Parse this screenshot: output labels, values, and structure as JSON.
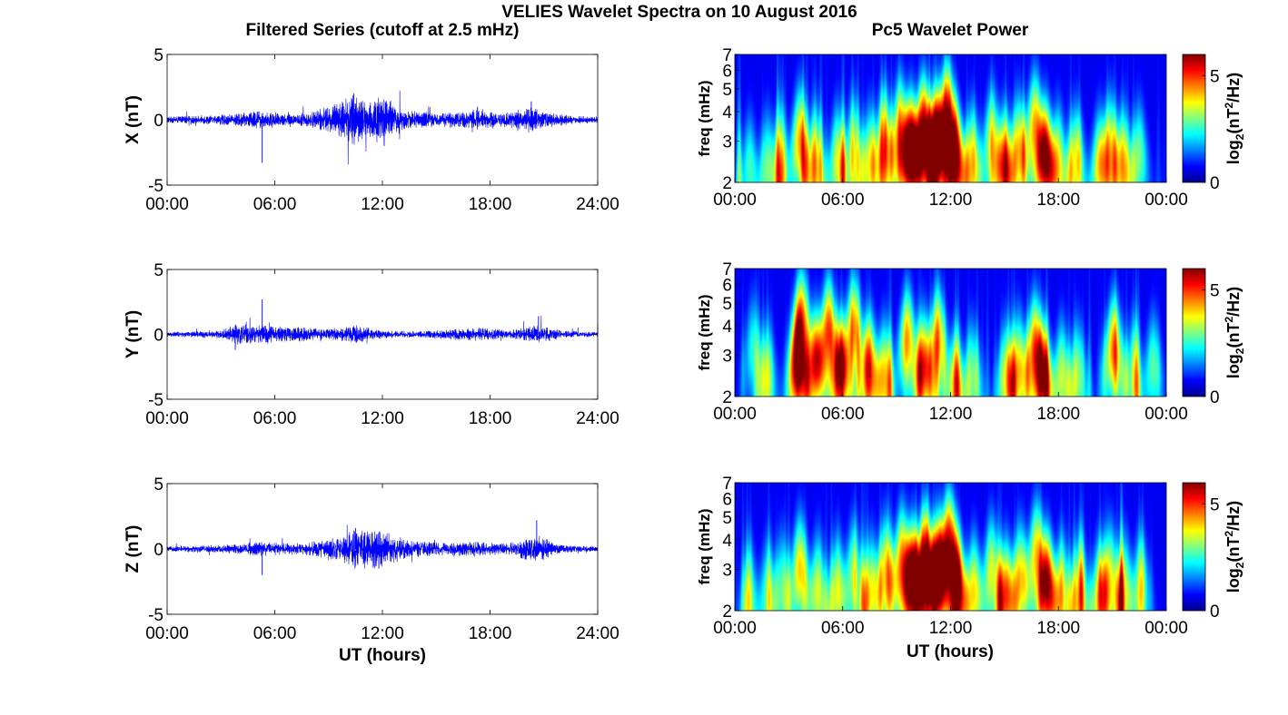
{
  "figure": {
    "title": "VELIES Wavelet Spectra on 10 August 2016",
    "left_header": "Filtered Series (cutoff at 2.5 mHz)",
    "right_header": "Pc5 Wavelet Power",
    "xlabel": "UT (hours)"
  },
  "chart_data": [
    {
      "type": "line",
      "id": "series-x",
      "ylabel": "X (nT)",
      "ylim": [
        -5,
        5
      ],
      "yticks": [
        -5,
        0,
        5
      ],
      "xlim": [
        0,
        24
      ],
      "xticks": [
        "00:00",
        "06:00",
        "12:00",
        "18:00",
        "24:00"
      ],
      "color": "#0000ff",
      "activity": [
        [
          0,
          0.2
        ],
        [
          3.5,
          0.35
        ],
        [
          5.3,
          0.6
        ],
        [
          7,
          0.35
        ],
        [
          9,
          0.8
        ],
        [
          10.3,
          1.6
        ],
        [
          11.2,
          1.2
        ],
        [
          12.1,
          1.5
        ],
        [
          13.5,
          0.6
        ],
        [
          15,
          0.45
        ],
        [
          17.2,
          0.65
        ],
        [
          18.5,
          0.4
        ],
        [
          20.3,
          0.9
        ],
        [
          21,
          0.5
        ],
        [
          22.5,
          0.3
        ],
        [
          24,
          0.2
        ]
      ],
      "spikes": [
        [
          5.3,
          -3.3
        ],
        [
          10.4,
          2.0
        ],
        [
          12.1,
          -2.0
        ],
        [
          20.3,
          1.4
        ],
        [
          17.3,
          1.0
        ]
      ]
    },
    {
      "type": "line",
      "id": "series-y",
      "ylabel": "Y (nT)",
      "ylim": [
        -5,
        5
      ],
      "yticks": [
        -5,
        0,
        5
      ],
      "xlim": [
        0,
        24
      ],
      "xticks": [
        "00:00",
        "06:00",
        "12:00",
        "18:00",
        "24:00"
      ],
      "color": "#0000ff",
      "activity": [
        [
          0,
          0.15
        ],
        [
          3.0,
          0.25
        ],
        [
          3.8,
          0.7
        ],
        [
          5.3,
          0.6
        ],
        [
          7,
          0.5
        ],
        [
          9,
          0.35
        ],
        [
          10.5,
          0.55
        ],
        [
          12,
          0.25
        ],
        [
          14,
          0.2
        ],
        [
          17.5,
          0.45
        ],
        [
          19,
          0.25
        ],
        [
          20.7,
          0.6
        ],
        [
          22,
          0.25
        ],
        [
          24,
          0.15
        ]
      ],
      "spikes": [
        [
          5.3,
          2.7
        ],
        [
          3.8,
          -1.2
        ],
        [
          20.7,
          1.4
        ],
        [
          24,
          0.8
        ]
      ]
    },
    {
      "type": "line",
      "id": "series-z",
      "ylabel": "Z (nT)",
      "ylim": [
        -5,
        5
      ],
      "yticks": [
        -5,
        0,
        5
      ],
      "xlim": [
        0,
        24
      ],
      "xticks": [
        "00:00",
        "06:00",
        "12:00",
        "18:00",
        "24:00"
      ],
      "color": "#0000ff",
      "activity": [
        [
          0,
          0.15
        ],
        [
          3.5,
          0.3
        ],
        [
          5.3,
          0.45
        ],
        [
          7.5,
          0.35
        ],
        [
          9.5,
          0.8
        ],
        [
          10.5,
          1.3
        ],
        [
          12,
          1.2
        ],
        [
          13.5,
          0.55
        ],
        [
          15.5,
          0.4
        ],
        [
          17.3,
          0.5
        ],
        [
          19,
          0.35
        ],
        [
          20.5,
          0.9
        ],
        [
          22,
          0.25
        ],
        [
          24,
          0.15
        ]
      ],
      "spikes": [
        [
          5.3,
          -2.0
        ],
        [
          20.6,
          2.2
        ],
        [
          10.5,
          1.6
        ],
        [
          11.8,
          -1.5
        ]
      ]
    },
    {
      "type": "heatmap",
      "id": "power-x",
      "ylabel": "freq (mHz)",
      "yscale": "log",
      "ylim": [
        2,
        7
      ],
      "yticks": [
        2,
        3,
        4,
        5,
        6,
        7
      ],
      "xlim": [
        0,
        24
      ],
      "xticks": [
        "00:00",
        "06:00",
        "12:00",
        "18:00",
        "00:00"
      ],
      "colorbar": {
        "label": "log2(nT2/Hz)",
        "range": [
          0,
          6
        ],
        "ticks": [
          0,
          5
        ],
        "colormap": "jet"
      },
      "hotspots": [
        [
          0.8,
          2.3,
          2.2
        ],
        [
          1.8,
          2.4,
          2.3
        ],
        [
          2.5,
          2.5,
          2.2
        ],
        [
          3.6,
          3.0,
          4.0
        ],
        [
          4.5,
          2.5,
          3.0
        ],
        [
          5.7,
          2.5,
          3.2
        ],
        [
          6.6,
          2.8,
          2.8
        ],
        [
          7.5,
          2.5,
          3.0
        ],
        [
          8.3,
          3.0,
          3.8
        ],
        [
          9.2,
          3.3,
          4.2
        ],
        [
          9.8,
          2.8,
          6.2
        ],
        [
          10.5,
          3.3,
          6.2
        ],
        [
          11.2,
          3.0,
          6.0
        ],
        [
          11.8,
          3.8,
          5.8
        ],
        [
          12.3,
          2.5,
          5.0
        ],
        [
          13.2,
          2.5,
          3.5
        ],
        [
          14.3,
          3.0,
          3.2
        ],
        [
          15.0,
          2.4,
          4.3
        ],
        [
          15.8,
          2.8,
          3.6
        ],
        [
          16.7,
          3.5,
          4.0
        ],
        [
          17.3,
          2.6,
          5.4
        ],
        [
          18.0,
          2.5,
          3.2
        ],
        [
          19.0,
          2.5,
          3.4
        ],
        [
          20.3,
          2.4,
          3.2
        ],
        [
          20.9,
          2.8,
          3.4
        ],
        [
          21.6,
          2.5,
          3.0
        ],
        [
          22.5,
          2.6,
          2.6
        ]
      ]
    },
    {
      "type": "heatmap",
      "id": "power-y",
      "ylabel": "freq (mHz)",
      "yscale": "log",
      "ylim": [
        2,
        7
      ],
      "yticks": [
        2,
        3,
        4,
        5,
        6,
        7
      ],
      "xlim": [
        0,
        24
      ],
      "xticks": [
        "00:00",
        "06:00",
        "12:00",
        "18:00",
        "00:00"
      ],
      "colorbar": {
        "label": "log2(nT2/Hz)",
        "range": [
          0,
          6
        ],
        "ticks": [
          0,
          5
        ],
        "colormap": "jet"
      },
      "hotspots": [
        [
          1.0,
          3.2,
          2.0
        ],
        [
          1.8,
          2.5,
          2.2
        ],
        [
          3.5,
          2.7,
          5.6
        ],
        [
          3.7,
          4.2,
          4.2
        ],
        [
          4.5,
          2.8,
          4.3
        ],
        [
          5.2,
          3.8,
          4.8
        ],
        [
          5.9,
          2.6,
          4.6
        ],
        [
          6.6,
          3.9,
          4.2
        ],
        [
          7.5,
          2.7,
          4.2
        ],
        [
          8.3,
          2.5,
          3.5
        ],
        [
          9.6,
          3.5,
          4.0
        ],
        [
          10.5,
          2.7,
          4.4
        ],
        [
          11.3,
          3.5,
          4.0
        ],
        [
          12.3,
          2.3,
          3.5
        ],
        [
          13.2,
          2.5,
          2.5
        ],
        [
          15.1,
          2.5,
          3.0
        ],
        [
          15.8,
          2.7,
          3.4
        ],
        [
          16.7,
          3.2,
          4.6
        ],
        [
          17.2,
          2.5,
          4.3
        ],
        [
          18.2,
          2.5,
          3.0
        ],
        [
          19.1,
          2.5,
          2.6
        ],
        [
          21.1,
          3.2,
          4.4
        ],
        [
          22.2,
          2.6,
          2.2
        ],
        [
          23.3,
          2.7,
          2.4
        ]
      ]
    },
    {
      "type": "heatmap",
      "id": "power-z",
      "ylabel": "freq (mHz)",
      "yscale": "log",
      "ylim": [
        2,
        7
      ],
      "yticks": [
        2,
        3,
        4,
        5,
        6,
        7
      ],
      "xlim": [
        0,
        24
      ],
      "xticks": [
        "00:00",
        "06:00",
        "12:00",
        "18:00",
        "00:00"
      ],
      "colorbar": {
        "label": "log2(nT2/Hz)",
        "range": [
          0,
          6
        ],
        "ticks": [
          0,
          5
        ],
        "colormap": "jet"
      },
      "hotspots": [
        [
          0.8,
          2.3,
          2.2
        ],
        [
          1.8,
          2.4,
          2.2
        ],
        [
          2.6,
          2.6,
          2.2
        ],
        [
          3.6,
          3.0,
          3.8
        ],
        [
          4.6,
          2.5,
          3.0
        ],
        [
          5.7,
          2.5,
          3.0
        ],
        [
          6.6,
          2.9,
          2.8
        ],
        [
          7.6,
          2.5,
          3.0
        ],
        [
          8.4,
          3.0,
          3.6
        ],
        [
          9.3,
          3.3,
          4.2
        ],
        [
          9.9,
          2.8,
          6.1
        ],
        [
          10.6,
          3.3,
          6.1
        ],
        [
          11.3,
          3.0,
          5.9
        ],
        [
          11.9,
          3.8,
          5.6
        ],
        [
          12.4,
          2.5,
          5.0
        ],
        [
          13.3,
          2.5,
          3.4
        ],
        [
          14.3,
          3.0,
          3.2
        ],
        [
          15.1,
          2.4,
          4.2
        ],
        [
          15.9,
          2.8,
          3.4
        ],
        [
          16.8,
          3.5,
          3.8
        ],
        [
          17.4,
          2.6,
          5.2
        ],
        [
          18.2,
          2.5,
          3.2
        ],
        [
          19.2,
          2.5,
          3.2
        ],
        [
          20.3,
          2.4,
          3.2
        ],
        [
          20.9,
          2.8,
          3.2
        ],
        [
          21.7,
          2.5,
          3.0
        ],
        [
          22.6,
          2.6,
          2.6
        ]
      ]
    }
  ]
}
